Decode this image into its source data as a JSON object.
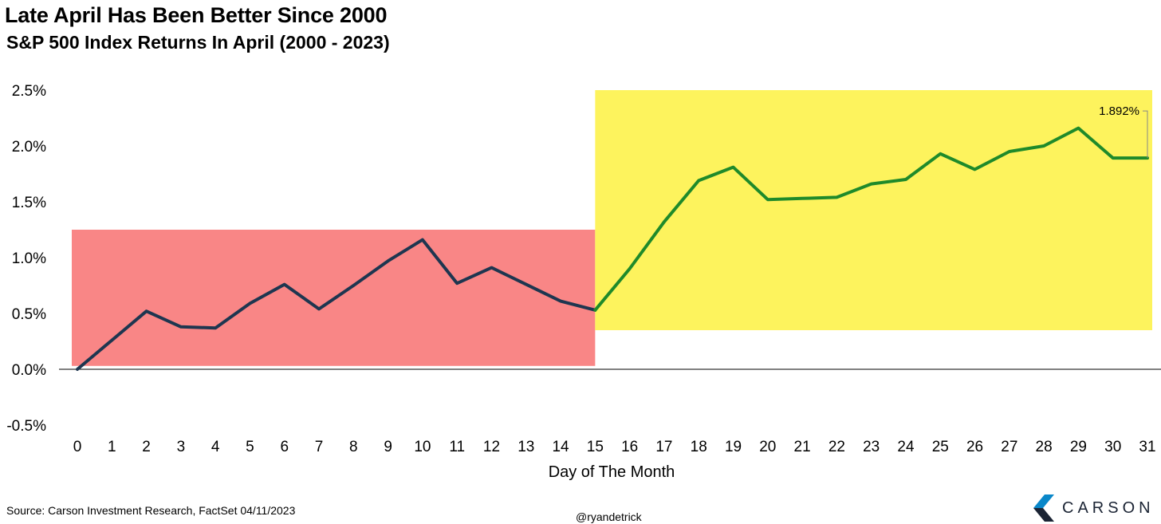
{
  "chart_data": {
    "type": "line",
    "title": "Late April Has Been Better Since 2000",
    "subtitle": "S&P 500 Index Returns In April (2000 - 2023)",
    "xlabel": "Day of The Month",
    "ylabel": "",
    "ylim": [
      -0.5,
      2.5
    ],
    "yticks": [
      "2.5%",
      "2.0%",
      "1.5%",
      "1.0%",
      "0.5%",
      "0.0%",
      "-0.5%"
    ],
    "x": [
      0,
      1,
      2,
      3,
      4,
      5,
      6,
      7,
      8,
      9,
      10,
      11,
      12,
      13,
      14,
      15,
      16,
      17,
      18,
      19,
      20,
      21,
      22,
      23,
      24,
      25,
      26,
      27,
      28,
      29,
      30,
      31
    ],
    "values": [
      0.0,
      0.26,
      0.52,
      0.38,
      0.37,
      0.59,
      0.76,
      0.54,
      0.75,
      0.97,
      1.16,
      0.77,
      0.91,
      0.76,
      0.61,
      0.53,
      0.9,
      1.32,
      1.69,
      1.81,
      1.52,
      1.53,
      1.54,
      1.66,
      1.7,
      1.93,
      1.79,
      1.95,
      2.0,
      2.16,
      1.892,
      1.892
    ],
    "regions": [
      {
        "from": 0,
        "to": 15,
        "y_from": 0.03,
        "y_to": 1.25,
        "color": "#f98686"
      },
      {
        "from": 15,
        "to": 31.5,
        "y_from": 0.35,
        "y_to": 2.5,
        "color": "#fdf35d"
      }
    ],
    "series_colors": {
      "first_half": "#1e3650",
      "second_half": "#1f8a2a"
    },
    "annotation": {
      "text": "1.892%",
      "value": 1.892,
      "day": 31
    },
    "grid": false,
    "legend": "none"
  },
  "footer": {
    "source": "Source: Carson Investment Research, FactSet 04/11/2023",
    "handle": "@ryandetrick",
    "brand": "CARSON",
    "brand_colors": [
      "#0a87c9",
      "#1b2434"
    ]
  }
}
